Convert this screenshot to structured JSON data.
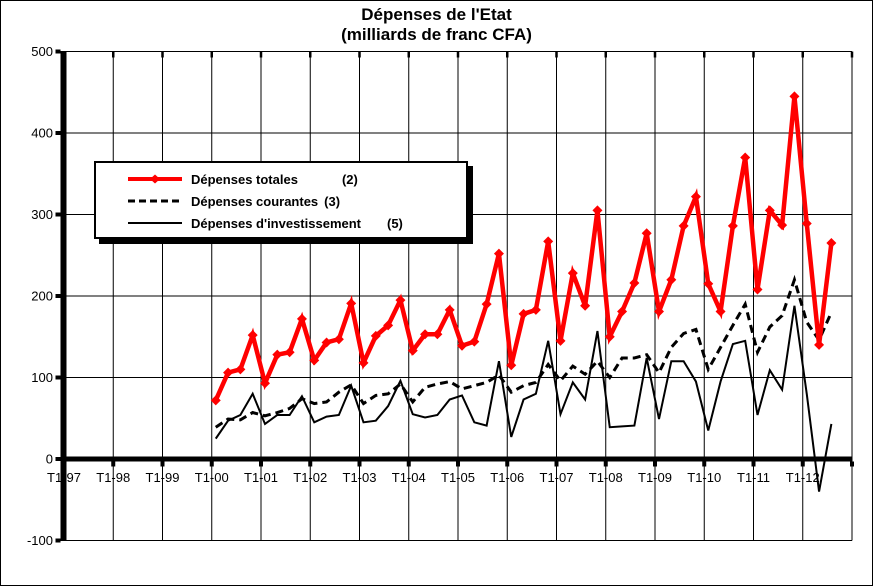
{
  "title": {
    "line1": "Dépenses de l'Etat",
    "line2": "(milliards de franc CFA)"
  },
  "colors": {
    "totales": "#FF0000",
    "courantes": "#000000",
    "investissement": "#000000",
    "background": "#FFFFFF",
    "grid": "#000000"
  },
  "legend": {
    "items": [
      {
        "label": "Dépenses totales",
        "code": "(2)",
        "series": "totales"
      },
      {
        "label": "Dépenses courantes",
        "code": "(3)",
        "series": "courantes"
      },
      {
        "label": "Dépenses d'investissement",
        "code": "(5)",
        "series": "investissement"
      }
    ]
  },
  "chart_data": {
    "type": "line",
    "title": "Dépenses de l'Etat (milliards de franc CFA)",
    "xlabel": "",
    "ylabel": "",
    "ylim": [
      -100,
      500
    ],
    "y_ticks": [
      -100,
      0,
      100,
      200,
      300,
      400,
      500
    ],
    "x_tick_labels": [
      "T1-97",
      "T1-98",
      "T1-99",
      "T1-00",
      "T1-01",
      "T1-02",
      "T1-03",
      "T1-04",
      "T1-05",
      "T1-06",
      "T1-07",
      "T1-08",
      "T1-09",
      "T1-10",
      "T1-11",
      "T1-12"
    ],
    "grid": "both",
    "legend_position": "upper-left-inside",
    "x_quarterly": {
      "first_point": "T1-2000",
      "last_point": "T3-2012",
      "points_per_year": 4,
      "start_offset_quarters": 12
    },
    "series": [
      {
        "name": "Dépenses totales (2)",
        "color": "#FF0000",
        "style": "thick-solid",
        "marker": "diamond",
        "values": [
          72,
          106,
          110,
          152,
          93,
          128,
          131,
          172,
          121,
          143,
          147,
          191,
          118,
          151,
          164,
          195,
          133,
          153,
          153,
          183,
          139,
          144,
          190,
          252,
          115,
          178,
          183,
          267,
          145,
          228,
          188,
          305,
          150,
          181,
          216,
          277,
          181,
          220,
          286,
          322,
          215,
          181,
          286,
          370,
          208,
          305,
          287,
          445,
          289,
          140,
          265
        ]
      },
      {
        "name": "Dépenses courantes (3)",
        "color": "#000000",
        "style": "dashed",
        "marker": "none",
        "values": [
          39,
          49,
          48,
          57,
          53,
          57,
          62,
          74,
          68,
          70,
          82,
          91,
          68,
          78,
          80,
          92,
          70,
          88,
          92,
          95,
          86,
          90,
          94,
          103,
          82,
          90,
          94,
          116,
          96,
          114,
          104,
          120,
          100,
          124,
          124,
          128,
          106,
          137,
          154,
          159,
          110,
          137,
          164,
          190,
          131,
          162,
          176,
          220,
          168,
          146,
          180
        ]
      },
      {
        "name": "Dépenses d'investissement (5)",
        "color": "#000000",
        "style": "thin-solid",
        "marker": "none",
        "values": [
          25,
          47,
          54,
          80,
          43,
          54,
          54,
          77,
          45,
          52,
          54,
          90,
          45,
          47,
          65,
          96,
          55,
          51,
          54,
          73,
          78,
          45,
          41,
          120,
          27,
          73,
          80,
          145,
          55,
          94,
          73,
          157,
          39,
          40,
          41,
          124,
          49,
          120,
          120,
          95,
          35,
          95,
          141,
          145,
          54,
          109,
          85,
          188,
          80,
          -40,
          43
        ]
      }
    ]
  }
}
